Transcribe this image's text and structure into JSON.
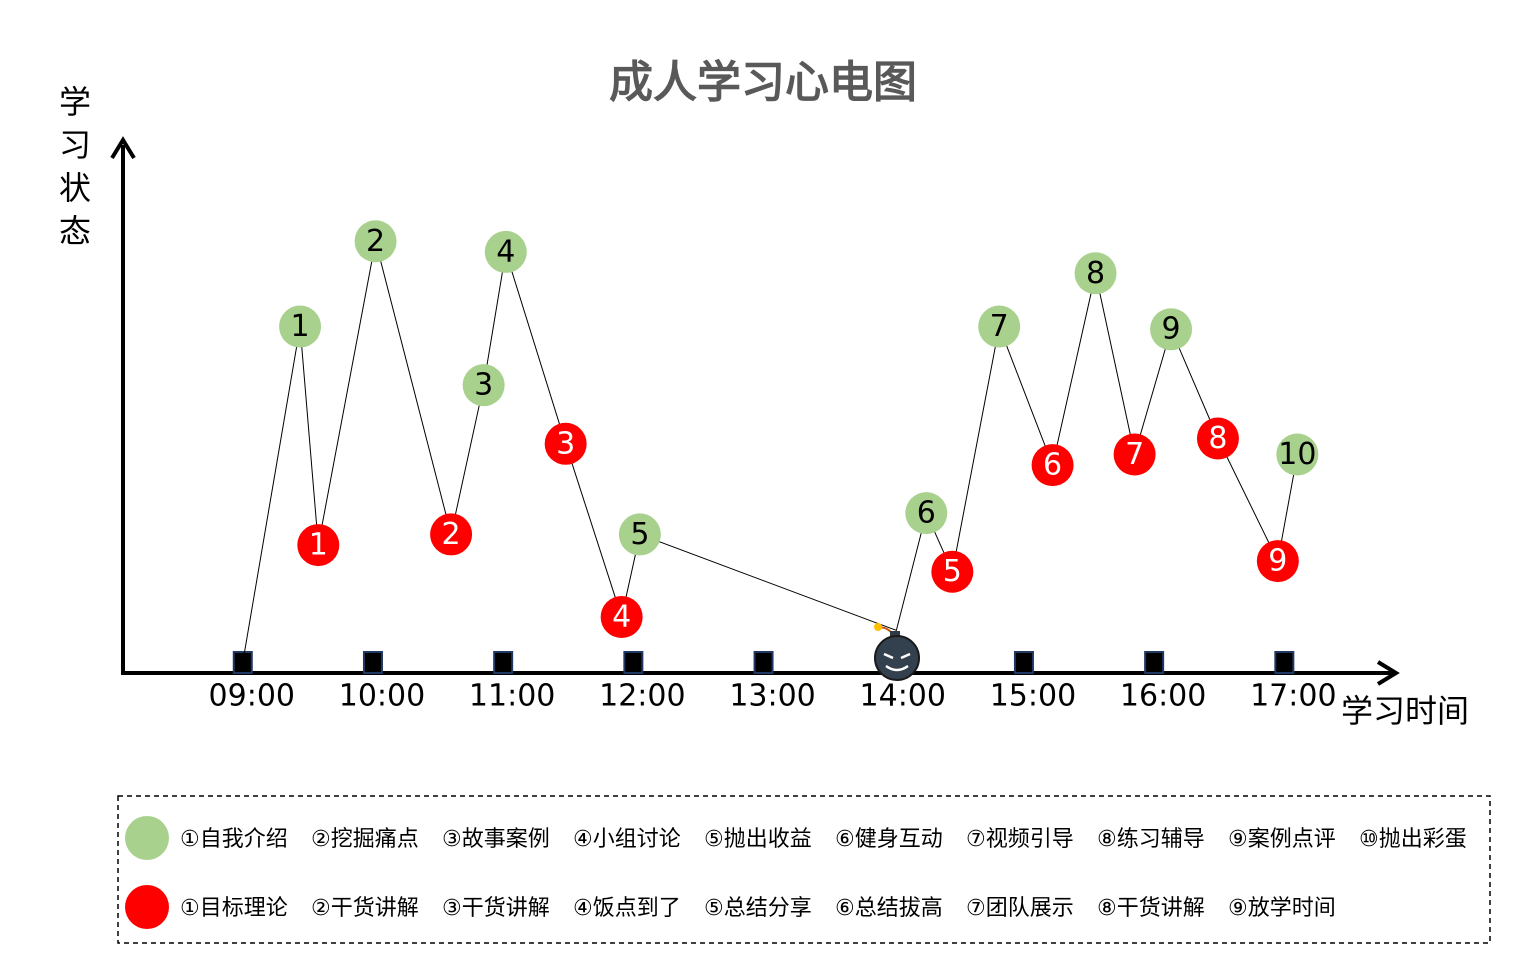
{
  "chart_data": {
    "type": "line",
    "title": "成人学习心电图",
    "ylabel": "学习状态",
    "xlabel": "学习时间",
    "xlim": [
      8.08,
      17.85
    ],
    "ylim": [
      0,
      100
    ],
    "xticks": [
      {
        "value": 9,
        "label": "09:00"
      },
      {
        "value": 10,
        "label": "10:00"
      },
      {
        "value": 11,
        "label": "11:00"
      },
      {
        "value": 12,
        "label": "12:00"
      },
      {
        "value": 13,
        "label": "13:00"
      },
      {
        "value": 14,
        "label": "14:00"
      },
      {
        "value": 15,
        "label": "15:00"
      },
      {
        "value": 16,
        "label": "16:00"
      },
      {
        "value": 17,
        "label": "17:00"
      }
    ],
    "x": [
      9,
      9.44,
      9.58,
      10.02,
      10.6,
      10.85,
      11.02,
      11.48,
      11.91,
      12.05,
      14.02,
      14.25,
      14.45,
      14.81,
      15.22,
      15.55,
      15.85,
      16.13,
      16.49,
      16.95,
      17.1
    ],
    "values": [
      2,
      65,
      24,
      81,
      26,
      54,
      79,
      43,
      10.5,
      26,
      8,
      30,
      19,
      65,
      39,
      75,
      41,
      64.5,
      44,
      21,
      41
    ],
    "point_labels": [
      null,
      "1",
      "1",
      "2",
      "2",
      "3",
      "4",
      "3",
      "4",
      "5",
      null,
      "6",
      "5",
      "7",
      "6",
      "8",
      "7",
      "9",
      "8",
      "9",
      "10"
    ],
    "point_colors": [
      null,
      "#a9d18e",
      "#ff0000",
      "#a9d18e",
      "#ff0000",
      "#a9d18e",
      "#a9d18e",
      "#ff0000",
      "#ff0000",
      "#a9d18e",
      null,
      "#a9d18e",
      "#ff0000",
      "#a9d18e",
      "#ff0000",
      "#a9d18e",
      "#ff0000",
      "#a9d18e",
      "#ff0000",
      "#ff0000",
      "#a9d18e"
    ],
    "legend": [
      {
        "color": "#a9d18e",
        "items": [
          "①自我介绍",
          "②挖掘痛点",
          "③故事案例",
          "④小组讨论",
          "⑤抛出收益",
          "⑥健身互动",
          "⑦视频引导",
          "⑧练习辅导",
          "⑨案例点评",
          "⑩抛出彩蛋"
        ]
      },
      {
        "color": "#ff0000",
        "items": [
          "①目标理论",
          "②干货讲解",
          "③干货讲解",
          "④饭点到了",
          "⑤总结分享",
          "⑥总结拔高",
          "⑦团队展示",
          "⑧干货讲解",
          "⑨放学时间"
        ]
      }
    ]
  }
}
